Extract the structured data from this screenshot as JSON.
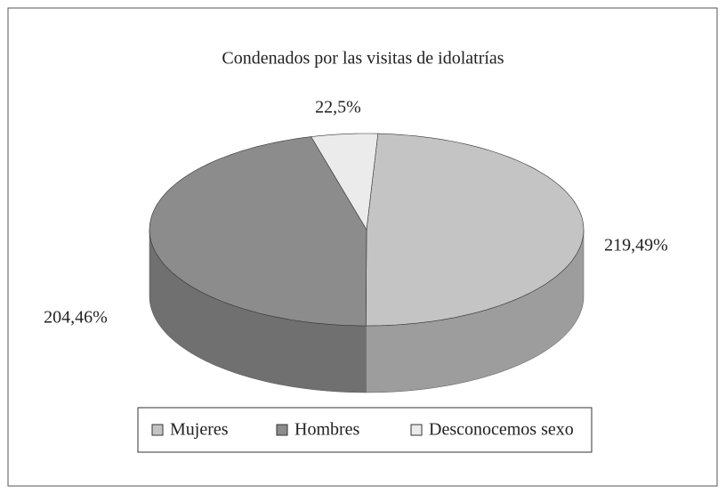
{
  "chart_data": {
    "type": "pie",
    "title": "Condenados por las visitas de idolatrías",
    "categories": [
      "Mujeres",
      "Hombres",
      "Desconocemos sexo"
    ],
    "values": [
      219,
      204,
      22
    ],
    "value_labels": [
      "219,49%",
      "204,46%",
      "22,5%"
    ],
    "colors": [
      "#c4c4c4",
      "#8c8c8c",
      "#ebebeb"
    ],
    "legend": "bottom"
  }
}
